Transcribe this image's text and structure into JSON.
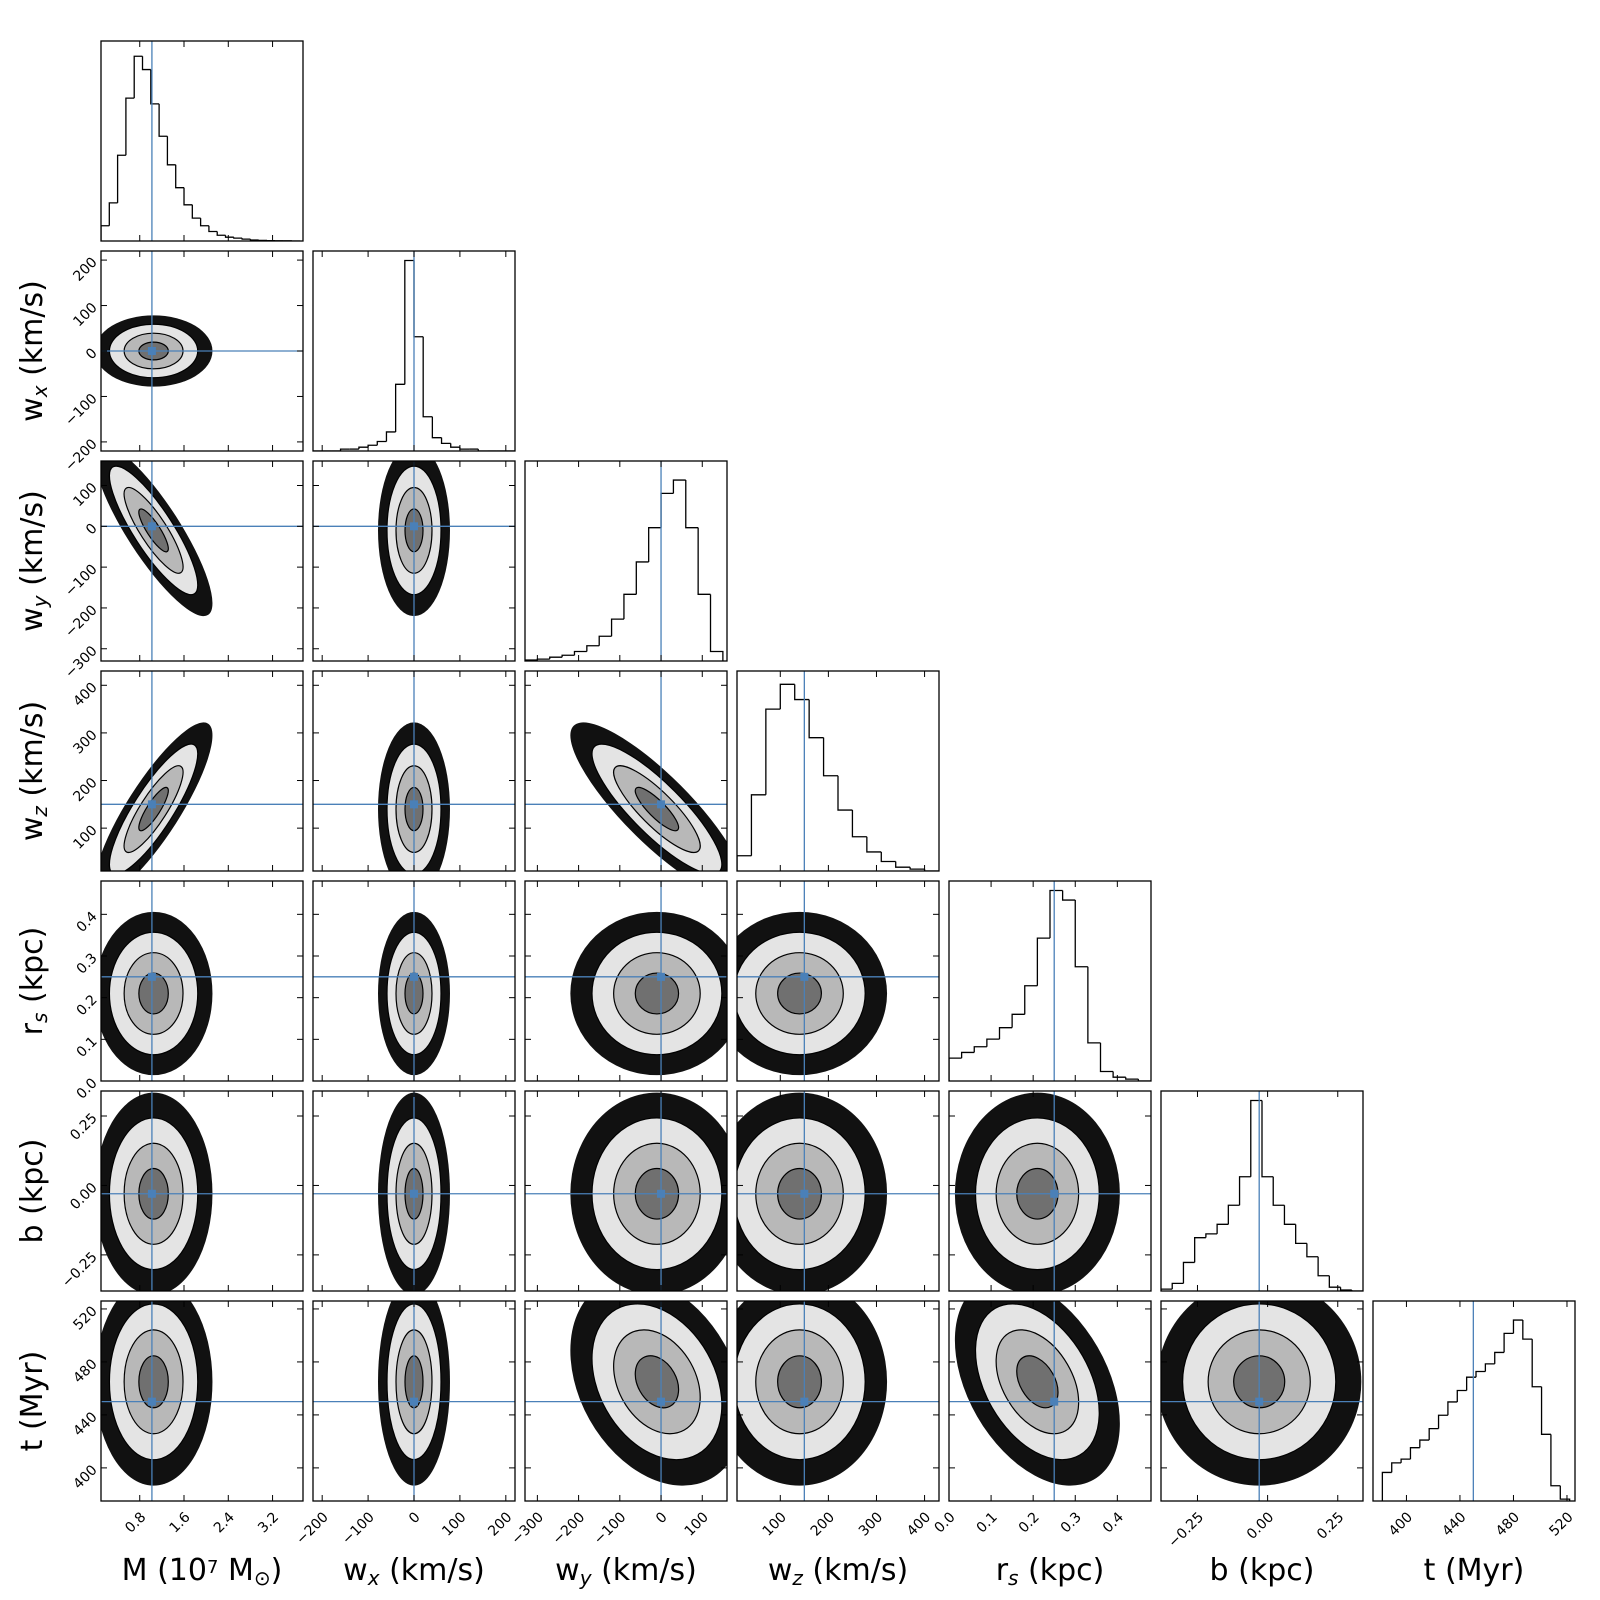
{
  "chart_data": {
    "type": "corner",
    "truth_color": "#4a80b8",
    "hist_ylim": [
      0,
      105
    ],
    "parameters": [
      {
        "label": [
          {
            "text": "M (10"
          },
          {
            "text": "7",
            "pos": "sup"
          },
          {
            "text": " M"
          },
          {
            "text": "⊙",
            "pos": "sub"
          },
          {
            "text": ")"
          }
        ],
        "lim": [
          0.1,
          3.75
        ],
        "ticks": [
          0.8,
          1.6,
          2.4,
          3.2
        ],
        "truth": 1.02,
        "mean": 1.05,
        "sd": 0.38,
        "bins": [
          0.1,
          0.25,
          0.4,
          0.55,
          0.7,
          0.85,
          1.0,
          1.15,
          1.3,
          1.45,
          1.6,
          1.75,
          1.9,
          2.05,
          2.2,
          2.35,
          2.5,
          2.65,
          2.8,
          2.95,
          3.1,
          3.25,
          3.4,
          3.55,
          3.7
        ],
        "counts": [
          8,
          20,
          45,
          75,
          97,
          90,
          72,
          55,
          40,
          28,
          19,
          12,
          8,
          5,
          3,
          2,
          1.5,
          1,
          0.5,
          0.3,
          0.2,
          0.1,
          0.1,
          0
        ]
      },
      {
        "label": [
          {
            "text": "w"
          },
          {
            "text": "x",
            "pos": "sub"
          },
          {
            "text": " (km/s)"
          }
        ],
        "lim": [
          -220,
          220
        ],
        "ticks": [
          {
            "value": -200,
            "label": "−200"
          },
          {
            "value": -100,
            "label": "−100"
          },
          0,
          100,
          200
        ],
        "truth": 0,
        "mean": 0,
        "sd": 28,
        "bins": [
          -220,
          -200,
          -180,
          -160,
          -140,
          -120,
          -100,
          -80,
          -60,
          -40,
          -20,
          0,
          20,
          40,
          60,
          80,
          100,
          120,
          140,
          160,
          180,
          200,
          220
        ],
        "counts": [
          0,
          0,
          0,
          1,
          1,
          2,
          3,
          5,
          10,
          35,
          100,
          60,
          18,
          7,
          4,
          2,
          1,
          1,
          0,
          0,
          0,
          0
        ]
      },
      {
        "label": [
          {
            "text": "w"
          },
          {
            "text": "y",
            "pos": "sub"
          },
          {
            "text": " (km/s)"
          }
        ],
        "lim": [
          -330,
          160
        ],
        "ticks": [
          {
            "value": -300,
            "label": "−300"
          },
          {
            "value": -200,
            "label": "−200"
          },
          {
            "value": -100,
            "label": "−100"
          },
          0,
          100
        ],
        "truth": 0,
        "mean": -10,
        "sd": 75,
        "bins": [
          -330,
          -300,
          -270,
          -240,
          -210,
          -180,
          -150,
          -120,
          -90,
          -60,
          -30,
          0,
          30,
          60,
          90,
          120,
          150
        ],
        "counts": [
          0.5,
          1,
          2,
          3,
          5,
          8,
          13,
          22,
          35,
          52,
          70,
          88,
          95,
          70,
          35,
          5
        ]
      },
      {
        "label": [
          {
            "text": "w"
          },
          {
            "text": "z",
            "pos": "sub"
          },
          {
            "text": " (km/s)"
          }
        ],
        "lim": [
          10,
          430
        ],
        "ticks": [
          100,
          200,
          300,
          400
        ],
        "truth": 150,
        "mean": 140,
        "sd": 65,
        "bins": [
          10,
          40,
          70,
          100,
          130,
          160,
          190,
          220,
          250,
          280,
          310,
          340,
          370,
          400,
          430
        ],
        "counts": [
          8,
          40,
          85,
          98,
          90,
          70,
          50,
          32,
          18,
          10,
          5,
          2,
          1,
          0
        ]
      },
      {
        "label": [
          {
            "text": "r"
          },
          {
            "text": "s",
            "pos": "sub"
          },
          {
            "text": " (kpc)"
          }
        ],
        "lim": [
          0,
          0.48
        ],
        "ticks": [
          {
            "value": 0,
            "label": "0.0"
          },
          0.1,
          0.2,
          0.3,
          0.4
        ],
        "truth": 0.25,
        "mean": 0.21,
        "sd": 0.07,
        "bins": [
          0,
          0.03,
          0.06,
          0.09,
          0.12,
          0.15,
          0.18,
          0.21,
          0.24,
          0.27,
          0.3,
          0.33,
          0.36,
          0.39,
          0.42,
          0.45,
          0.48
        ],
        "counts": [
          12,
          15,
          18,
          22,
          28,
          35,
          50,
          75,
          100,
          95,
          60,
          20,
          5,
          2,
          1,
          0
        ]
      },
      {
        "label": [
          {
            "text": "b (kpc)"
          }
        ],
        "lim": [
          -0.38,
          0.34
        ],
        "ticks": [
          {
            "value": -0.25,
            "label": "−0.25"
          },
          {
            "value": 0,
            "label": "0.00"
          },
          {
            "value": 0.25,
            "label": "0.25"
          }
        ],
        "truth": -0.03,
        "mean": -0.03,
        "sd": 0.13,
        "bins": [
          -0.38,
          -0.34,
          -0.3,
          -0.26,
          -0.22,
          -0.18,
          -0.14,
          -0.1,
          -0.06,
          -0.02,
          0.02,
          0.06,
          0.1,
          0.14,
          0.18,
          0.22,
          0.26,
          0.3,
          0.34
        ],
        "counts": [
          1,
          4,
          15,
          28,
          30,
          35,
          45,
          60,
          100,
          60,
          45,
          35,
          25,
          18,
          8,
          2,
          0.5,
          0
        ]
      },
      {
        "label": [
          {
            "text": "t (Myr)"
          }
        ],
        "lim": [
          375,
          526
        ],
        "ticks": [
          400,
          440,
          480,
          520
        ],
        "truth": 450,
        "mean": 465,
        "sd": 28,
        "bins": [
          382,
          389,
          396,
          403,
          410,
          417,
          424,
          431,
          438,
          445,
          452,
          459,
          466,
          473,
          480,
          487,
          494,
          501,
          508,
          515,
          522
        ],
        "counts": [
          15,
          20,
          22,
          28,
          32,
          38,
          45,
          52,
          58,
          65,
          68,
          72,
          78,
          88,
          95,
          85,
          60,
          35,
          8,
          1
        ]
      }
    ],
    "correlation": [
      [],
      [
        0
      ],
      [
        -0.85,
        0
      ],
      [
        0.85,
        0,
        -0.85
      ],
      [
        0,
        0,
        0,
        0
      ],
      [
        0,
        0,
        0,
        0,
        0
      ],
      [
        0,
        0,
        -0.3,
        0,
        -0.4,
        0
      ]
    ]
  }
}
